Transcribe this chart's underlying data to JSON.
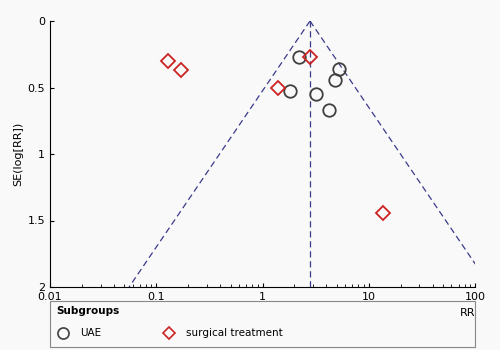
{
  "ylabel": "SE(log[RR])",
  "xlabel": "RR",
  "xlim": [
    0.01,
    100
  ],
  "ylim": [
    2,
    0
  ],
  "yticks": [
    0,
    0.5,
    1,
    1.5,
    2
  ],
  "xtick_vals": [
    0.01,
    0.1,
    1,
    10,
    100
  ],
  "xtick_labels": [
    "0.01",
    "0.1",
    "1",
    "10",
    "100"
  ],
  "pooled_rr": 2.8,
  "funnel_se_max": 2.0,
  "ci_multiplier": 1.96,
  "uae_points": [
    [
      2.2,
      0.27
    ],
    [
      1.8,
      0.53
    ],
    [
      3.2,
      0.55
    ],
    [
      4.2,
      0.67
    ],
    [
      4.8,
      0.44
    ],
    [
      5.2,
      0.36
    ]
  ],
  "surgical_points": [
    [
      0.13,
      0.3
    ],
    [
      0.17,
      0.37
    ],
    [
      1.4,
      0.5
    ],
    [
      2.8,
      0.27
    ],
    [
      13.5,
      1.44
    ]
  ],
  "uae_color": "#404040",
  "surgical_color": "#cc2222",
  "funnel_color": "#3a3a8c",
  "background_color": "#f9f9f9",
  "legend_title": "Subgroups",
  "legend_uae": "UAE",
  "legend_surgical": "surgical treatment"
}
